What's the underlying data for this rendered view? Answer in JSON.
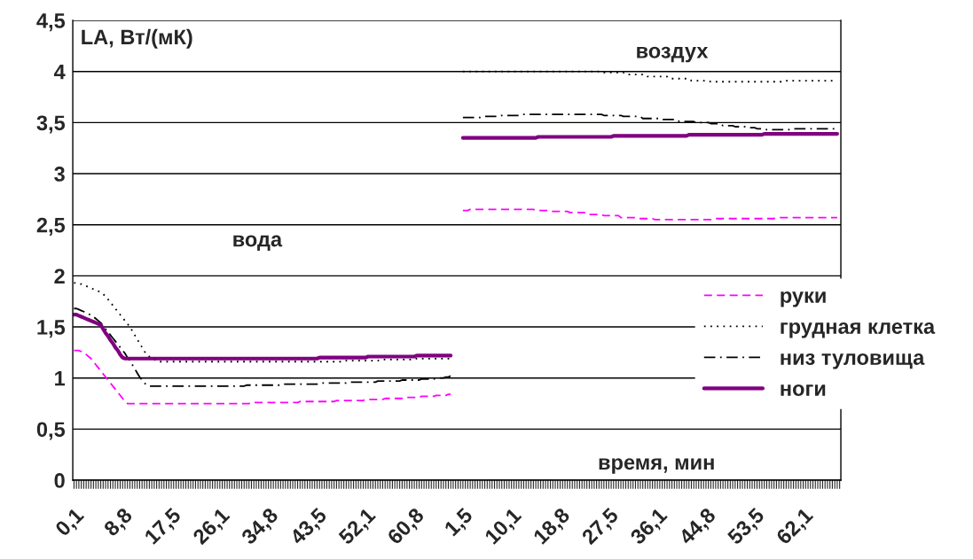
{
  "chart_data": {
    "type": "line",
    "xlabel": "время, мин",
    "ylabel": "LA, Вт/(мК)",
    "annotations": [
      "вода",
      "воздух"
    ],
    "categories": [
      "0,1",
      null,
      null,
      null,
      null,
      null,
      null,
      null,
      null,
      null,
      null,
      null,
      null,
      null,
      null,
      null,
      null,
      null,
      null,
      null,
      "8,8",
      null,
      null,
      null,
      null,
      null,
      null,
      null,
      null,
      null,
      null,
      null,
      null,
      null,
      null,
      null,
      null,
      null,
      null,
      null,
      "17,5",
      null,
      null,
      null,
      null,
      null,
      null,
      null,
      null,
      null,
      null,
      null,
      null,
      null,
      null,
      null,
      null,
      null,
      null,
      null,
      "26,1",
      null,
      null,
      null,
      null,
      null,
      null,
      null,
      null,
      null,
      null,
      null,
      null,
      null,
      null,
      null,
      null,
      null,
      null,
      null,
      "34,8",
      null,
      null,
      null,
      null,
      null,
      null,
      null,
      null,
      null,
      null,
      null,
      null,
      null,
      null,
      null,
      null,
      null,
      null,
      null,
      "43,5",
      null,
      null,
      null,
      null,
      null,
      null,
      null,
      null,
      null,
      null,
      null,
      null,
      null,
      null,
      null,
      null,
      null,
      null,
      null,
      "52,1",
      null,
      null,
      null,
      null,
      null,
      null,
      null,
      null,
      null,
      null,
      null,
      null,
      null,
      null,
      null,
      null,
      null,
      null,
      null,
      "60,8",
      null,
      null,
      null,
      null,
      null,
      null,
      null,
      null,
      null,
      null,
      null,
      null,
      null,
      null,
      null,
      null,
      null,
      null,
      null,
      "1,5",
      null,
      null,
      null,
      null,
      null,
      null,
      null,
      null,
      null,
      null,
      null,
      null,
      null,
      null,
      null,
      null,
      null,
      null,
      null,
      "10,1",
      null,
      null,
      null,
      null,
      null,
      null,
      null,
      null,
      null,
      null,
      null,
      null,
      null,
      null,
      null,
      null,
      null,
      null,
      null,
      "18,8",
      null,
      null,
      null,
      null,
      null,
      null,
      null,
      null,
      null,
      null,
      null,
      null,
      null,
      null,
      null,
      null,
      null,
      null,
      null,
      "27,5",
      null,
      null,
      null,
      null,
      null,
      null,
      null,
      null,
      null,
      null,
      null,
      null,
      null,
      null,
      null,
      null,
      null,
      null,
      null,
      "36,1",
      null,
      null,
      null,
      null,
      null,
      null,
      null,
      null,
      null,
      null,
      null,
      null,
      null,
      null,
      null,
      null,
      null,
      null,
      null,
      "44,8",
      null,
      null,
      null,
      null,
      null,
      null,
      null,
      null,
      null,
      null,
      null,
      null,
      null,
      null,
      null,
      null,
      null,
      null,
      null,
      "53,5",
      null,
      null,
      null,
      null,
      null,
      null,
      null,
      null,
      null,
      null,
      null,
      null,
      null,
      null,
      null,
      null,
      null,
      null,
      null,
      "62,1",
      null,
      null,
      null,
      null,
      null,
      null,
      null,
      null,
      null,
      null,
      null,
      null,
      null,
      null,
      null
    ],
    "series": [
      {
        "name": "руки",
        "color": "#ff00ff",
        "line_style": "dashed",
        "values": [
          1.27,
          1.27,
          1.27,
          1.26,
          1.25,
          1.23,
          1.21,
          1.19,
          1.16,
          1.13,
          1.1,
          1.07,
          1.04,
          1.01,
          0.98,
          0.95,
          0.92,
          0.89,
          0.86,
          0.83,
          0.8,
          0.77,
          0.75,
          0.75,
          0.75,
          0.75,
          0.75,
          0.75,
          0.75,
          0.75,
          0.75,
          0.75,
          0.75,
          0.75,
          0.75,
          0.75,
          0.75,
          0.75,
          0.75,
          0.75,
          0.75,
          0.75,
          0.75,
          0.75,
          0.75,
          0.75,
          0.75,
          0.75,
          0.75,
          0.75,
          0.75,
          0.75,
          0.75,
          0.75,
          0.75,
          0.75,
          0.75,
          0.75,
          0.75,
          0.75,
          0.75,
          0.75,
          0.75,
          0.75,
          0.75,
          0.75,
          0.75,
          0.75,
          0.75,
          0.75,
          0.75,
          0.75,
          0.75,
          0.76,
          0.76,
          0.76,
          0.76,
          0.76,
          0.76,
          0.76,
          0.76,
          0.76,
          0.76,
          0.76,
          0.76,
          0.76,
          0.76,
          0.76,
          0.76,
          0.76,
          0.76,
          0.76,
          0.76,
          0.77,
          0.77,
          0.77,
          0.77,
          0.77,
          0.77,
          0.77,
          0.77,
          0.77,
          0.77,
          0.77,
          0.77,
          0.77,
          0.77,
          0.77,
          0.78,
          0.78,
          0.78,
          0.78,
          0.78,
          0.78,
          0.78,
          0.78,
          0.78,
          0.78,
          0.78,
          0.78,
          0.79,
          0.79,
          0.79,
          0.79,
          0.79,
          0.79,
          0.79,
          0.79,
          0.8,
          0.8,
          0.8,
          0.8,
          0.8,
          0.8,
          0.8,
          0.8,
          0.81,
          0.81,
          0.81,
          0.81,
          0.81,
          0.81,
          0.81,
          0.82,
          0.82,
          0.82,
          0.82,
          0.82,
          0.82,
          0.83,
          0.83,
          0.83,
          0.83,
          0.83,
          0.84,
          0.84,
          null,
          null,
          null,
          null,
          2.64,
          2.64,
          2.64,
          2.65,
          2.65,
          2.65,
          2.65,
          2.65,
          2.65,
          2.65,
          2.65,
          2.65,
          2.65,
          2.65,
          2.65,
          2.65,
          2.65,
          2.65,
          2.65,
          2.65,
          2.65,
          2.65,
          2.65,
          2.65,
          2.65,
          2.65,
          2.65,
          2.65,
          2.65,
          2.65,
          2.64,
          2.64,
          2.64,
          2.64,
          2.64,
          2.64,
          2.64,
          2.63,
          2.63,
          2.63,
          2.63,
          2.63,
          2.63,
          2.63,
          2.62,
          2.62,
          2.62,
          2.62,
          2.62,
          2.62,
          2.62,
          2.6,
          2.6,
          2.6,
          2.6,
          2.6,
          2.6,
          2.6,
          2.59,
          2.59,
          2.59,
          2.59,
          2.59,
          2.59,
          2.59,
          2.57,
          2.57,
          2.57,
          2.57,
          2.57,
          2.57,
          2.57,
          2.56,
          2.56,
          2.56,
          2.56,
          2.56,
          2.56,
          2.56,
          2.55,
          2.55,
          2.55,
          2.55,
          2.55,
          2.55,
          2.55,
          2.55,
          2.55,
          2.55,
          2.55,
          2.55,
          2.55,
          2.55,
          2.55,
          2.55,
          2.55,
          2.55,
          2.55,
          2.55,
          2.55,
          2.55,
          2.55,
          2.55,
          2.55,
          2.56,
          2.56,
          2.56,
          2.56,
          2.56,
          2.56,
          2.56,
          2.56,
          2.56,
          2.56,
          2.56,
          2.56,
          2.56,
          2.56,
          2.56,
          2.56,
          2.56,
          2.56,
          2.56,
          2.56,
          2.56,
          2.56,
          2.56,
          2.56,
          2.56,
          2.57,
          2.57,
          2.57,
          2.57,
          2.57,
          2.57,
          2.57,
          2.57,
          2.57,
          2.57,
          2.57,
          2.57,
          2.57,
          2.57,
          2.57,
          2.57,
          2.57,
          2.57,
          2.57,
          2.57,
          2.57,
          2.57,
          2.57,
          2.57,
          2.57,
          2.57,
          null
        ]
      },
      {
        "name": "грудная клетка",
        "color": "#000000",
        "line_style": "dotted",
        "values": [
          1.93,
          1.93,
          1.92,
          1.92,
          1.91,
          1.9,
          1.89,
          1.88,
          1.87,
          1.86,
          1.85,
          1.84,
          1.82,
          1.8,
          1.77,
          1.74,
          1.71,
          1.68,
          1.65,
          1.62,
          1.59,
          1.56,
          1.53,
          1.5,
          1.46,
          1.42,
          1.38,
          1.34,
          1.3,
          1.26,
          1.23,
          1.21,
          1.19,
          1.18,
          1.17,
          1.16,
          1.16,
          1.16,
          1.16,
          1.16,
          1.16,
          1.16,
          1.16,
          1.16,
          1.16,
          1.16,
          1.16,
          1.16,
          1.16,
          1.16,
          1.16,
          1.16,
          1.16,
          1.16,
          1.16,
          1.16,
          1.16,
          1.16,
          1.16,
          1.16,
          1.16,
          1.16,
          1.16,
          1.16,
          1.16,
          1.16,
          1.16,
          1.16,
          1.16,
          1.16,
          1.16,
          1.16,
          1.16,
          1.16,
          1.16,
          1.16,
          1.16,
          1.16,
          1.16,
          1.16,
          1.16,
          1.16,
          1.16,
          1.16,
          1.16,
          1.16,
          1.16,
          1.16,
          1.16,
          1.16,
          1.16,
          1.16,
          1.16,
          1.16,
          1.16,
          1.16,
          1.16,
          1.16,
          1.16,
          1.16,
          1.16,
          1.16,
          1.16,
          1.16,
          1.16,
          1.16,
          1.16,
          1.16,
          1.16,
          1.16,
          1.16,
          1.17,
          1.17,
          1.17,
          1.17,
          1.17,
          1.17,
          1.17,
          1.17,
          1.17,
          1.17,
          1.17,
          1.17,
          1.17,
          1.17,
          1.17,
          1.18,
          1.18,
          1.18,
          1.18,
          1.18,
          1.18,
          1.18,
          1.18,
          1.18,
          1.18,
          1.18,
          1.18,
          1.18,
          1.18,
          1.18,
          1.19,
          1.19,
          1.19,
          1.19,
          1.19,
          1.19,
          1.19,
          1.19,
          1.19,
          1.19,
          1.19,
          1.19,
          1.19,
          1.19,
          1.19,
          null,
          null,
          null,
          null,
          4.0,
          4.0,
          4.0,
          4.0,
          4.0,
          4.0,
          4.0,
          4.0,
          4.0,
          4.0,
          4.0,
          4.0,
          4.0,
          4.0,
          4.0,
          4.0,
          4.0,
          4.0,
          4.0,
          4.0,
          4.0,
          4.0,
          4.0,
          4.0,
          4.0,
          4.0,
          4.0,
          4.0,
          4.0,
          4.0,
          4.0,
          4.0,
          4.0,
          4.0,
          4.0,
          4.0,
          4.0,
          4.0,
          4.0,
          4.0,
          4.0,
          4.0,
          4.0,
          4.0,
          4.0,
          4.0,
          4.0,
          4.0,
          4.0,
          4.0,
          4.0,
          4.0,
          4.0,
          4.0,
          4.0,
          4.0,
          4.0,
          4.0,
          3.99,
          3.99,
          3.99,
          3.99,
          3.99,
          3.99,
          3.99,
          3.99,
          3.99,
          3.97,
          3.97,
          3.97,
          3.97,
          3.97,
          3.97,
          3.97,
          3.97,
          3.97,
          3.95,
          3.95,
          3.95,
          3.95,
          3.95,
          3.95,
          3.95,
          3.95,
          3.95,
          3.93,
          3.93,
          3.93,
          3.93,
          3.93,
          3.93,
          3.93,
          3.93,
          3.93,
          3.91,
          3.91,
          3.91,
          3.91,
          3.91,
          3.91,
          3.91,
          3.91,
          3.9,
          3.9,
          3.9,
          3.9,
          3.9,
          3.9,
          3.9,
          3.9,
          3.9,
          3.9,
          3.9,
          3.9,
          3.9,
          3.9,
          3.9,
          3.9,
          3.9,
          3.9,
          3.9,
          3.9,
          3.9,
          3.9,
          3.9,
          3.9,
          3.9,
          3.9,
          3.9,
          3.9,
          3.9,
          3.9,
          3.91,
          3.91,
          3.91,
          3.91,
          3.91,
          3.91,
          3.91,
          3.91,
          3.91,
          3.91,
          3.91,
          3.91,
          3.91,
          3.91,
          3.91,
          3.91,
          3.91,
          3.91,
          3.91,
          3.91,
          3.91,
          3.91,
          3.91,
          null
        ]
      },
      {
        "name": "низ туловища",
        "color": "#000000",
        "line_style": "dashdot",
        "values": [
          1.68,
          1.68,
          1.67,
          1.66,
          1.65,
          1.64,
          1.63,
          1.61,
          1.6,
          1.58,
          1.56,
          1.54,
          1.51,
          1.48,
          1.45,
          1.42,
          1.39,
          1.36,
          1.33,
          1.3,
          1.27,
          1.24,
          1.2,
          1.17,
          1.13,
          1.09,
          1.05,
          1.01,
          0.98,
          0.95,
          0.93,
          0.92,
          0.92,
          0.92,
          0.92,
          0.92,
          0.92,
          0.92,
          0.92,
          0.92,
          0.92,
          0.92,
          0.92,
          0.92,
          0.92,
          0.92,
          0.92,
          0.92,
          0.92,
          0.92,
          0.92,
          0.92,
          0.92,
          0.92,
          0.92,
          0.92,
          0.92,
          0.92,
          0.92,
          0.92,
          0.92,
          0.92,
          0.92,
          0.92,
          0.92,
          0.92,
          0.92,
          0.92,
          0.92,
          0.92,
          0.92,
          0.93,
          0.93,
          0.93,
          0.93,
          0.93,
          0.93,
          0.93,
          0.93,
          0.93,
          0.93,
          0.93,
          0.93,
          0.93,
          0.93,
          0.93,
          0.94,
          0.94,
          0.94,
          0.94,
          0.94,
          0.94,
          0.94,
          0.94,
          0.94,
          0.94,
          0.94,
          0.94,
          0.94,
          0.94,
          0.94,
          0.95,
          0.95,
          0.95,
          0.95,
          0.95,
          0.95,
          0.95,
          0.95,
          0.95,
          0.95,
          0.95,
          0.95,
          0.96,
          0.96,
          0.96,
          0.96,
          0.96,
          0.96,
          0.96,
          0.96,
          0.96,
          0.96,
          0.96,
          0.96,
          0.97,
          0.97,
          0.97,
          0.97,
          0.97,
          0.97,
          0.97,
          0.97,
          0.97,
          0.97,
          0.98,
          0.98,
          0.98,
          0.98,
          0.98,
          0.98,
          0.98,
          0.98,
          0.99,
          0.99,
          0.99,
          0.99,
          0.99,
          0.99,
          1.0,
          1.0,
          1.0,
          1.0,
          1.01,
          1.01,
          1.02,
          null,
          null,
          null,
          null,
          3.55,
          3.55,
          3.55,
          3.55,
          3.55,
          3.55,
          3.55,
          3.55,
          3.56,
          3.56,
          3.56,
          3.56,
          3.56,
          3.56,
          3.56,
          3.56,
          3.57,
          3.57,
          3.57,
          3.57,
          3.57,
          3.57,
          3.57,
          3.57,
          3.58,
          3.58,
          3.58,
          3.58,
          3.58,
          3.58,
          3.58,
          3.58,
          3.58,
          3.58,
          3.58,
          3.58,
          3.58,
          3.58,
          3.58,
          3.58,
          3.58,
          3.58,
          3.58,
          3.58,
          3.58,
          3.58,
          3.58,
          3.58,
          3.58,
          3.58,
          3.58,
          3.58,
          3.58,
          3.58,
          3.58,
          3.58,
          3.58,
          3.58,
          3.57,
          3.57,
          3.57,
          3.57,
          3.57,
          3.57,
          3.57,
          3.57,
          3.56,
          3.56,
          3.56,
          3.56,
          3.56,
          3.56,
          3.56,
          3.56,
          3.54,
          3.54,
          3.54,
          3.54,
          3.54,
          3.54,
          3.54,
          3.54,
          3.53,
          3.53,
          3.53,
          3.53,
          3.53,
          3.53,
          3.53,
          3.51,
          3.51,
          3.51,
          3.51,
          3.51,
          3.51,
          3.51,
          3.5,
          3.5,
          3.5,
          3.5,
          3.5,
          3.5,
          3.49,
          3.49,
          3.49,
          3.49,
          3.49,
          3.47,
          3.47,
          3.47,
          3.47,
          3.47,
          3.46,
          3.46,
          3.46,
          3.46,
          3.46,
          3.45,
          3.45,
          3.45,
          3.45,
          3.44,
          3.44,
          3.44,
          3.44,
          3.43,
          3.43,
          3.43,
          3.43,
          3.43,
          3.43,
          3.43,
          3.43,
          3.43,
          3.43,
          3.44,
          3.44,
          3.44,
          3.44,
          3.44,
          3.44,
          3.44,
          3.44,
          3.44,
          3.44,
          3.44,
          3.44,
          3.44,
          3.44,
          3.44,
          3.44,
          3.44,
          3.44,
          3.44,
          3.44,
          null
        ]
      },
      {
        "name": "ноги",
        "color": "#800080",
        "line_style": "solid",
        "values": [
          1.62,
          1.62,
          1.61,
          1.6,
          1.59,
          1.58,
          1.57,
          1.56,
          1.55,
          1.54,
          1.53,
          1.52,
          1.48,
          1.44,
          1.41,
          1.37,
          1.34,
          1.3,
          1.27,
          1.23,
          1.2,
          1.19,
          1.19,
          1.19,
          1.19,
          1.19,
          1.19,
          1.19,
          1.19,
          1.19,
          1.19,
          1.19,
          1.19,
          1.19,
          1.19,
          1.19,
          1.19,
          1.19,
          1.19,
          1.19,
          1.19,
          1.19,
          1.19,
          1.19,
          1.19,
          1.19,
          1.19,
          1.19,
          1.19,
          1.19,
          1.19,
          1.19,
          1.19,
          1.19,
          1.19,
          1.19,
          1.19,
          1.19,
          1.19,
          1.19,
          1.19,
          1.19,
          1.19,
          1.19,
          1.19,
          1.19,
          1.19,
          1.19,
          1.19,
          1.19,
          1.19,
          1.19,
          1.19,
          1.19,
          1.19,
          1.19,
          1.19,
          1.19,
          1.19,
          1.19,
          1.19,
          1.19,
          1.19,
          1.19,
          1.19,
          1.19,
          1.19,
          1.19,
          1.19,
          1.19,
          1.19,
          1.19,
          1.19,
          1.19,
          1.19,
          1.19,
          1.19,
          1.19,
          1.19,
          1.19,
          1.19,
          1.2,
          1.2,
          1.2,
          1.2,
          1.2,
          1.2,
          1.2,
          1.2,
          1.2,
          1.2,
          1.2,
          1.2,
          1.2,
          1.2,
          1.2,
          1.2,
          1.2,
          1.2,
          1.2,
          1.2,
          1.21,
          1.21,
          1.21,
          1.21,
          1.21,
          1.21,
          1.21,
          1.21,
          1.21,
          1.21,
          1.21,
          1.21,
          1.21,
          1.21,
          1.21,
          1.21,
          1.21,
          1.21,
          1.21,
          1.21,
          1.22,
          1.22,
          1.22,
          1.22,
          1.22,
          1.22,
          1.22,
          1.22,
          1.22,
          1.22,
          1.22,
          1.22,
          1.22,
          1.22,
          1.22,
          null,
          null,
          null,
          null,
          3.35,
          3.35,
          3.35,
          3.35,
          3.35,
          3.35,
          3.35,
          3.35,
          3.35,
          3.35,
          3.35,
          3.35,
          3.35,
          3.35,
          3.35,
          3.35,
          3.35,
          3.35,
          3.35,
          3.35,
          3.35,
          3.35,
          3.35,
          3.35,
          3.35,
          3.35,
          3.35,
          3.35,
          3.35,
          3.35,
          3.35,
          3.36,
          3.36,
          3.36,
          3.36,
          3.36,
          3.36,
          3.36,
          3.36,
          3.36,
          3.36,
          3.36,
          3.36,
          3.36,
          3.36,
          3.36,
          3.36,
          3.36,
          3.36,
          3.36,
          3.36,
          3.36,
          3.36,
          3.36,
          3.36,
          3.36,
          3.36,
          3.36,
          3.36,
          3.36,
          3.36,
          3.36,
          3.37,
          3.37,
          3.37,
          3.37,
          3.37,
          3.37,
          3.37,
          3.37,
          3.37,
          3.37,
          3.37,
          3.37,
          3.37,
          3.37,
          3.37,
          3.37,
          3.37,
          3.37,
          3.37,
          3.37,
          3.37,
          3.37,
          3.37,
          3.37,
          3.37,
          3.37,
          3.37,
          3.37,
          3.37,
          3.37,
          3.37,
          3.38,
          3.38,
          3.38,
          3.38,
          3.38,
          3.38,
          3.38,
          3.38,
          3.38,
          3.38,
          3.38,
          3.38,
          3.38,
          3.38,
          3.38,
          3.38,
          3.38,
          3.38,
          3.38,
          3.38,
          3.38,
          3.38,
          3.38,
          3.38,
          3.38,
          3.38,
          3.38,
          3.38,
          3.38,
          3.38,
          3.38,
          3.39,
          3.39,
          3.39,
          3.39,
          3.39,
          3.39,
          3.39,
          3.39,
          3.39,
          3.39,
          3.39,
          3.39,
          3.39,
          3.39,
          3.39,
          3.39,
          3.39,
          3.39,
          3.39,
          3.39,
          3.39,
          3.39,
          3.39,
          3.39,
          3.39,
          3.39,
          3.39,
          3.39,
          3.39,
          3.39,
          3.39,
          null
        ]
      }
    ],
    "ylim": [
      0,
      4.5
    ],
    "yticks": [
      0,
      {
        "value": 0.5,
        "label": "0,5"
      },
      1,
      {
        "value": 1.5,
        "label": "1,5"
      },
      2,
      {
        "value": 2.5,
        "label": "2,5"
      },
      3,
      {
        "value": 3.5,
        "label": "3,5"
      },
      4,
      {
        "value": 4.5,
        "label": "4,5"
      }
    ],
    "grid": "y",
    "legend": "right",
    "marker": "none"
  }
}
